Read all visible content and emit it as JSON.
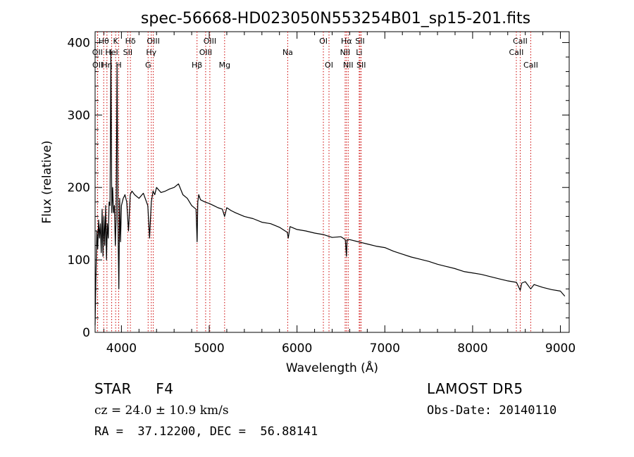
{
  "chart_data": {
    "type": "line",
    "title": "spec-56668-HD023050N553254B01_sp15-201.fits",
    "xlabel": "Wavelength (Å)",
    "ylabel": "Flux (relative)",
    "xlim": [
      3700,
      9100
    ],
    "ylim": [
      0,
      415
    ],
    "xticks": [
      4000,
      5000,
      6000,
      7000,
      8000,
      9000
    ],
    "yticks": [
      0,
      100,
      200,
      300,
      400
    ],
    "grid": false,
    "line_color": "#000000",
    "marker_color": "#cc0000",
    "series": [
      {
        "x": [
          3700,
          3710,
          3720,
          3730,
          3740,
          3750,
          3760,
          3770,
          3780,
          3790,
          3800,
          3810,
          3820,
          3830,
          3840,
          3850,
          3860,
          3870,
          3880,
          3890,
          3900,
          3910,
          3920,
          3930,
          3940,
          3950,
          3960,
          3970,
          3980,
          3990,
          4000,
          4020,
          4040,
          4060,
          4080,
          4100,
          4120,
          4150,
          4200,
          4250,
          4300,
          4320,
          4340,
          4360,
          4380,
          4400,
          4450,
          4500,
          4550,
          4600,
          4650,
          4700,
          4750,
          4800,
          4850,
          4862,
          4870,
          4880,
          4900,
          4950,
          5000,
          5050,
          5100,
          5150,
          5175,
          5200,
          5250,
          5300,
          5400,
          5500,
          5600,
          5700,
          5800,
          5890,
          5900,
          5920,
          6000,
          6100,
          6200,
          6300,
          6400,
          6500,
          6550,
          6563,
          6570,
          6600,
          6700,
          6800,
          6900,
          7000,
          7100,
          7200,
          7300,
          7400,
          7500,
          7600,
          7700,
          7800,
          7900,
          8000,
          8100,
          8200,
          8300,
          8400,
          8500,
          8542,
          8560,
          8600,
          8662,
          8700,
          8800,
          8900,
          9000,
          9050
        ],
        "y": [
          10,
          80,
          140,
          115,
          155,
          130,
          150,
          110,
          170,
          105,
          160,
          120,
          175,
          100,
          150,
          130,
          180,
          175,
          390,
          165,
          200,
          165,
          175,
          120,
          158,
          370,
          155,
          60,
          185,
          125,
          175,
          185,
          190,
          180,
          140,
          190,
          195,
          190,
          185,
          192,
          175,
          130,
          180,
          195,
          190,
          200,
          193,
          195,
          198,
          200,
          205,
          190,
          185,
          175,
          170,
          125,
          180,
          190,
          183,
          180,
          178,
          175,
          172,
          170,
          160,
          172,
          168,
          165,
          160,
          157,
          152,
          150,
          145,
          138,
          130,
          146,
          142,
          140,
          137,
          135,
          131,
          132,
          128,
          105,
          128,
          128,
          125,
          122,
          119,
          117,
          112,
          108,
          104,
          101,
          98,
          94,
          91,
          88,
          84,
          82,
          80,
          77,
          74,
          71,
          69,
          58,
          68,
          70,
          60,
          66,
          62,
          59,
          57,
          50
        ]
      }
    ],
    "spectral_lines": [
      {
        "label": "Hθ",
        "wavelength": 3798,
        "row": 1
      },
      {
        "label": "OII",
        "wavelength": 3727,
        "row": 2
      },
      {
        "label": "OII",
        "wavelength": 3729,
        "row": 3
      },
      {
        "label": "Hη",
        "wavelength": 3835,
        "row": 3
      },
      {
        "label": "HeI",
        "wavelength": 3889,
        "row": 2
      },
      {
        "label": "K",
        "wavelength": 3934,
        "row": 1
      },
      {
        "label": "H",
        "wavelength": 3969,
        "row": 3
      },
      {
        "label": "Hδ",
        "wavelength": 4102,
        "row": 1
      },
      {
        "label": "SII",
        "wavelength": 4072,
        "row": 2
      },
      {
        "label": "OIII",
        "wavelength": 4363,
        "row": 1
      },
      {
        "label": "Hγ",
        "wavelength": 4340,
        "row": 2
      },
      {
        "label": "G",
        "wavelength": 4304,
        "row": 3
      },
      {
        "label": "Hβ",
        "wavelength": 4861,
        "row": 3
      },
      {
        "label": "OIII",
        "wavelength": 5007,
        "row": 1
      },
      {
        "label": "OIII",
        "wavelength": 4959,
        "row": 2
      },
      {
        "label": "Mg",
        "wavelength": 5175,
        "row": 3
      },
      {
        "label": "Na",
        "wavelength": 5894,
        "row": 2
      },
      {
        "label": "OI",
        "wavelength": 6300,
        "row": 1
      },
      {
        "label": "OI",
        "wavelength": 6364,
        "row": 3
      },
      {
        "label": "Hα",
        "wavelength": 6563,
        "row": 1
      },
      {
        "label": "NII",
        "wavelength": 6548,
        "row": 2
      },
      {
        "label": "NII",
        "wavelength": 6583,
        "row": 3
      },
      {
        "label": "SII",
        "wavelength": 6717,
        "row": 1
      },
      {
        "label": "Li",
        "wavelength": 6708,
        "row": 2
      },
      {
        "label": "SII",
        "wavelength": 6731,
        "row": 3
      },
      {
        "label": "CaII",
        "wavelength": 8542,
        "row": 1
      },
      {
        "label": "CaII",
        "wavelength": 8498,
        "row": 2
      },
      {
        "label": "CaII",
        "wavelength": 8662,
        "row": 3
      }
    ]
  },
  "info": {
    "class_text": "STAR     F4",
    "cz_text": "cz = 24.0 ± 10.9 km/s",
    "radec_text": "RA =  37.12200, DEC =  56.88141",
    "survey_text": "LAMOST DR5",
    "obsdate_text": "Obs-Date: 20140110"
  }
}
